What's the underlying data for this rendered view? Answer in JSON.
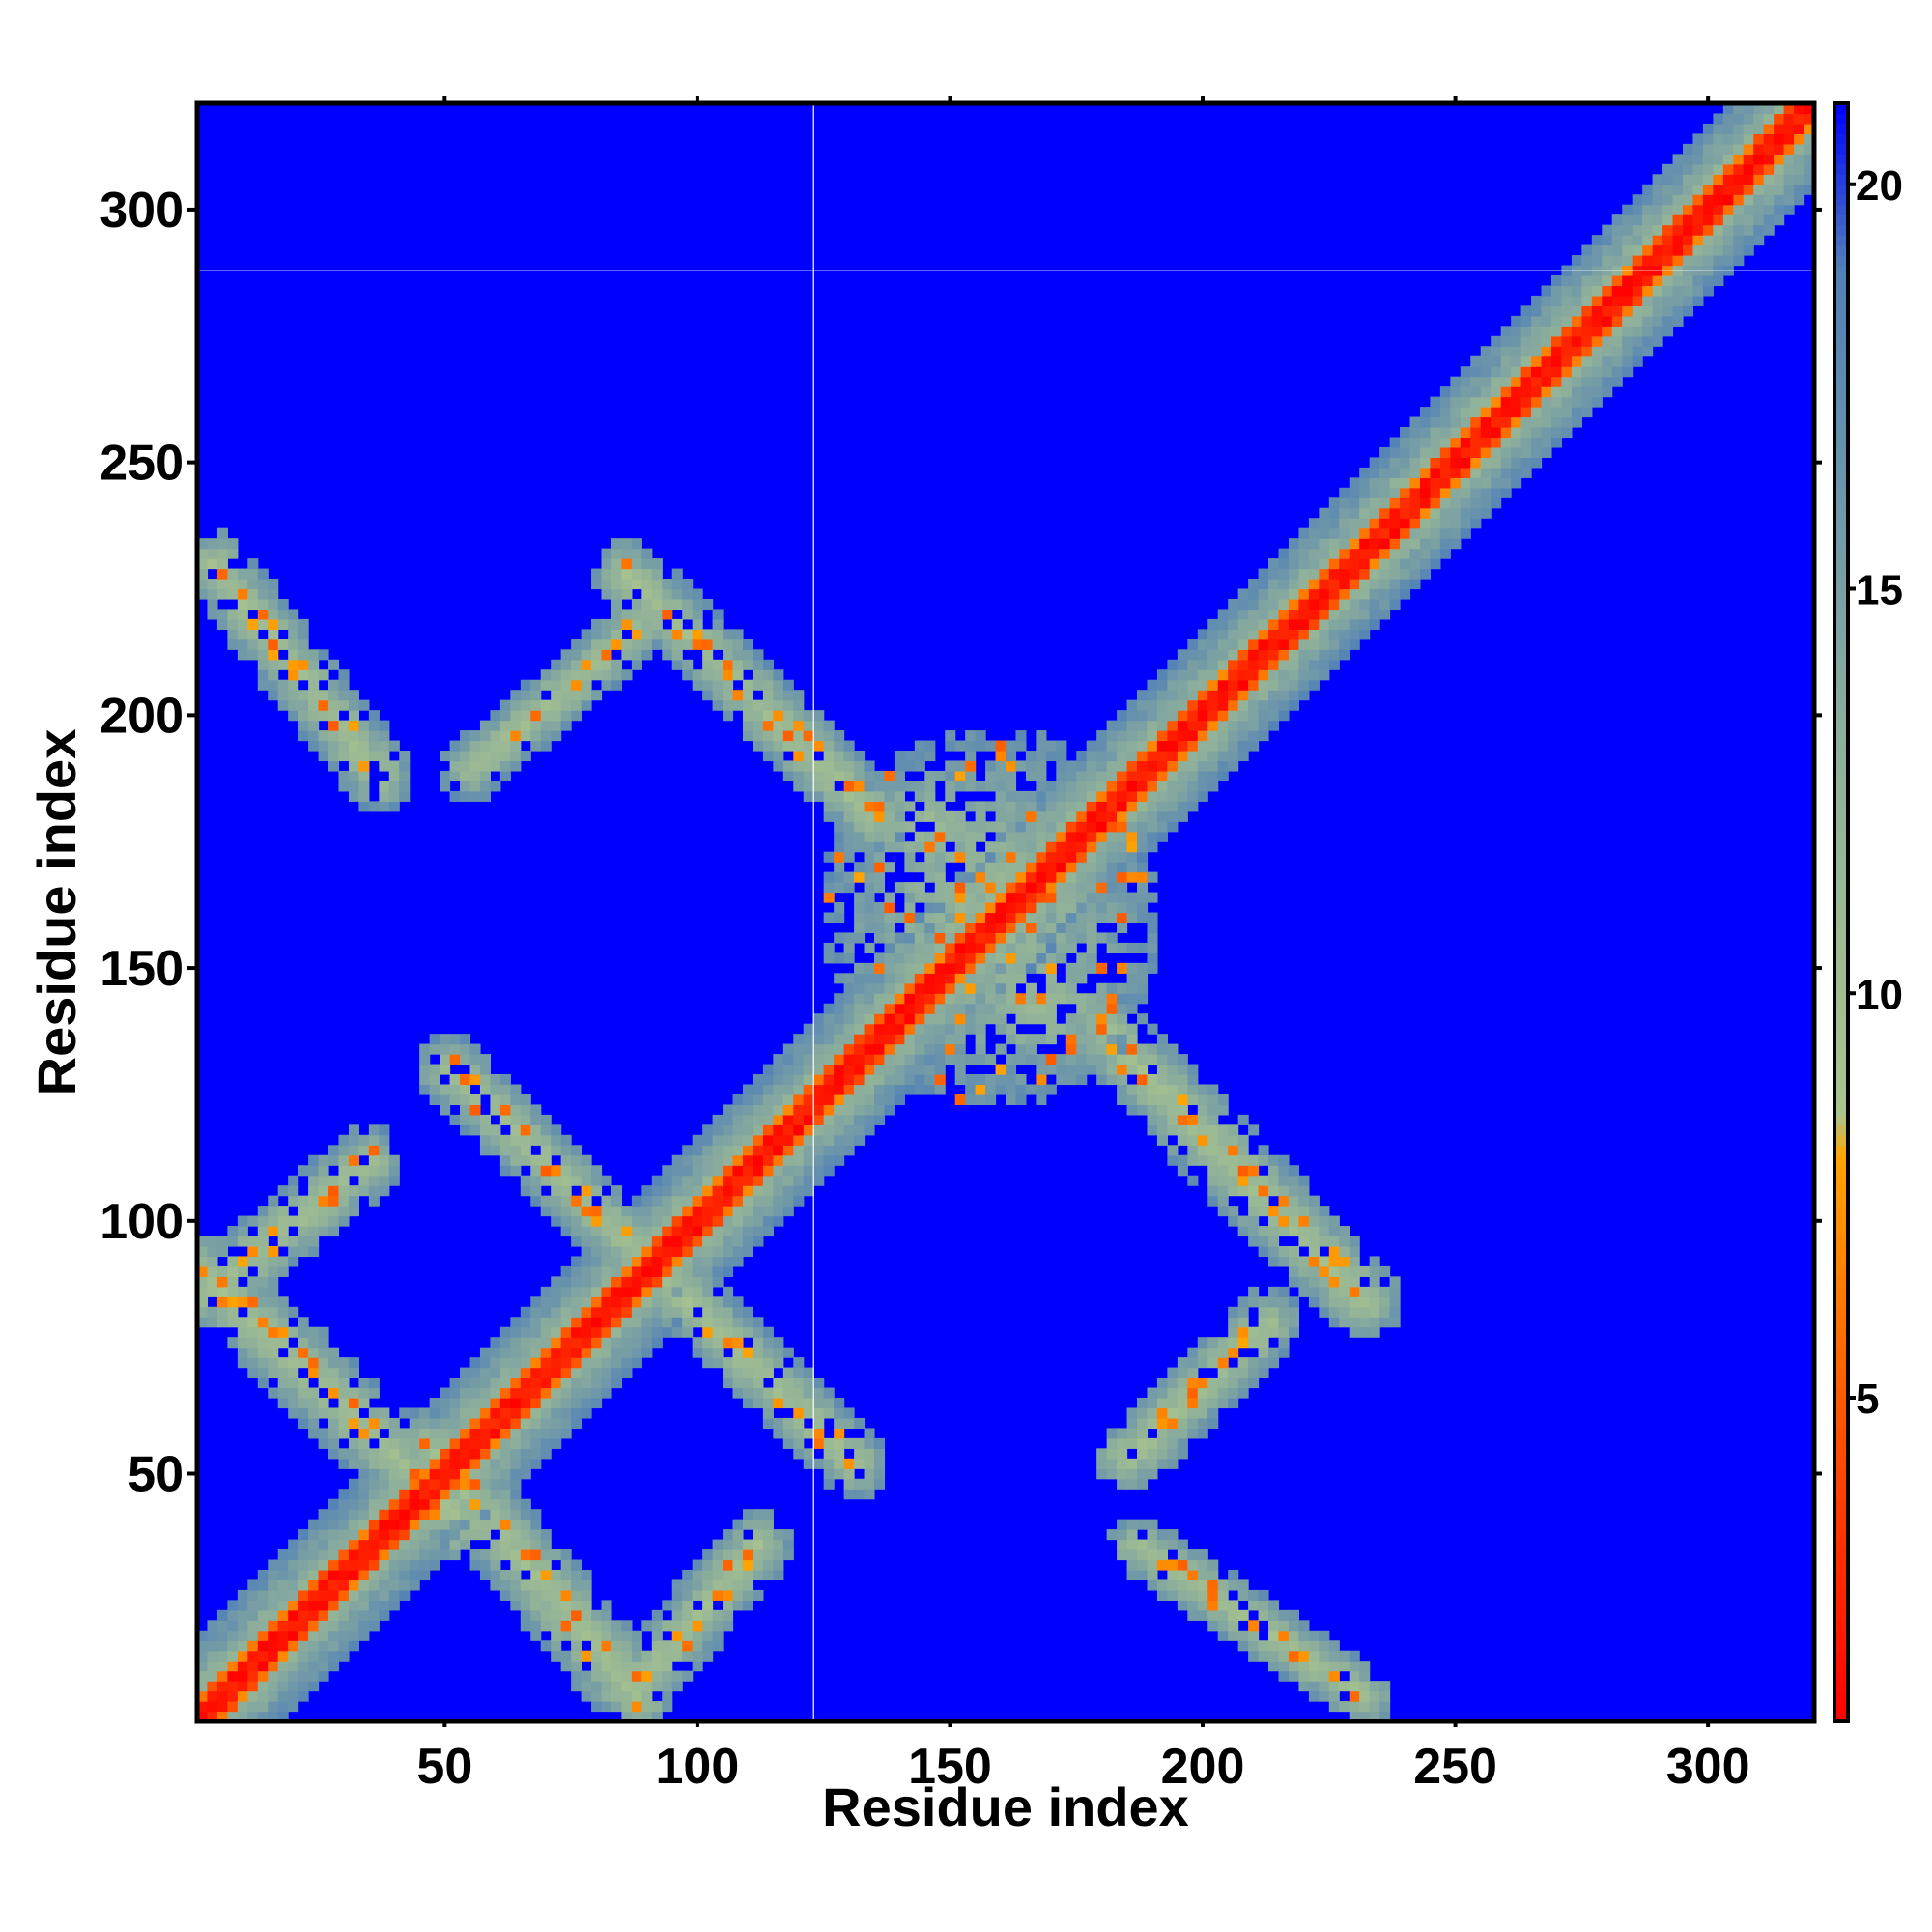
{
  "chart_data": {
    "type": "heatmap",
    "title": "",
    "xlabel": "Residue index",
    "ylabel": "Residue index",
    "xlim": [
      1,
      321
    ],
    "ylim": [
      1,
      321
    ],
    "x_ticks": [
      50,
      100,
      150,
      200,
      250,
      300
    ],
    "y_ticks": [
      50,
      100,
      150,
      200,
      250,
      300
    ],
    "colorbar": {
      "range": [
        1,
        21
      ],
      "ticks": [
        5,
        10,
        15,
        20
      ],
      "stops": [
        {
          "value": 1,
          "color": "#ff0000"
        },
        {
          "value": 5,
          "color": "#ff5a00"
        },
        {
          "value": 8,
          "color": "#ffa500"
        },
        {
          "value": 8.5,
          "color": "#a9c48d"
        },
        {
          "value": 13,
          "color": "#8fb09a"
        },
        {
          "value": 19,
          "color": "#4f7fb8"
        },
        {
          "value": 21,
          "color": "#0000ff"
        }
      ]
    },
    "background_value": 21,
    "reference_lines": {
      "x": 123,
      "y": 288
    },
    "features": [
      {
        "kind": "diagonal",
        "from": 1,
        "to": 321,
        "core_width": 2,
        "band_width": 12
      },
      {
        "kind": "antiparallel",
        "x": [
          4,
          37
        ],
        "y": [
          230,
          188
        ],
        "width": 7
      },
      {
        "kind": "antiparallel",
        "x": [
          86,
          135
        ],
        "y": [
          228,
          180
        ],
        "width": 7
      },
      {
        "kind": "parallel",
        "x": [
          55,
          88
        ],
        "y": [
          189,
          217
        ],
        "width": 6
      },
      {
        "kind": "antiparallel",
        "x": [
          51,
          131
        ],
        "y": [
          130,
          52
        ],
        "width": 7
      },
      {
        "kind": "antiparallel",
        "x": [
          2,
          54
        ],
        "y": [
          90,
          40
        ],
        "width": 8
      },
      {
        "kind": "parallel",
        "x": [
          2,
          35
        ],
        "y": [
          85,
          112
        ],
        "width": 7
      },
      {
        "kind": "antiparallel",
        "x": [
          47,
          88
        ],
        "y": [
          55,
          6
        ],
        "width": 8
      },
      {
        "kind": "parallel",
        "x": [
          88,
          112
        ],
        "y": [
          8,
          36
        ],
        "width": 7
      },
      {
        "kind": "antiparallel",
        "x": [
          181,
          232
        ],
        "y": [
          137,
          84
        ],
        "width": 8
      },
      {
        "kind": "parallel",
        "x": [
          185,
          213
        ],
        "y": [
          53,
          80
        ],
        "width": 7
      },
      {
        "kind": "antiparallel",
        "x": [
          187,
          232
        ],
        "y": [
          36,
          6
        ],
        "width": 6
      },
      {
        "kind": "blob",
        "cx": 158,
        "cy": 160,
        "rx": 34,
        "ry": 38
      },
      {
        "kind": "blob",
        "cx": 145,
        "cy": 178,
        "rx": 18,
        "ry": 14
      },
      {
        "kind": "blob",
        "cx": 168,
        "cy": 143,
        "rx": 20,
        "ry": 16
      }
    ]
  }
}
